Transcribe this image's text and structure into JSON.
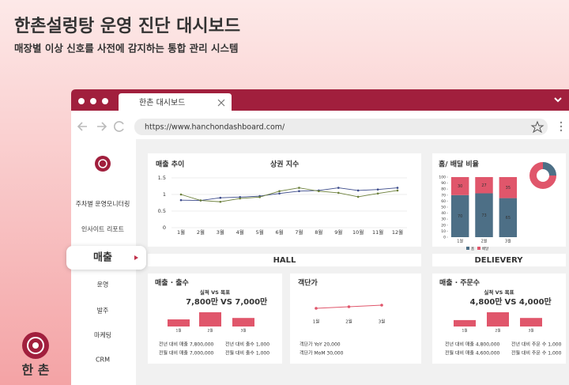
{
  "header": {
    "title": "한촌설렁탕 운영 진단 대시보드",
    "subtitle": "매장별 이상 신호를 사전에 감지하는 통합 관리 시스템"
  },
  "browser": {
    "tab": "한촌 대시보드",
    "url": "https://www.hanchondashboard.com/"
  },
  "sidebar": {
    "items": [
      "주차별 운영모니터링",
      "인사이트 리포트",
      "매출",
      "운영",
      "발주",
      "마케팅",
      "CRM"
    ],
    "active": 2
  },
  "sections": [
    "HALL",
    "DELIEVERY"
  ],
  "logo": "한 촌",
  "chart_data": [
    {
      "type": "line",
      "title": "매출 추이",
      "title2": "상권 지수",
      "categories": [
        "1월",
        "2월",
        "3월",
        "4월",
        "5월",
        "6월",
        "7월",
        "8월",
        "9월",
        "10월",
        "11월",
        "12월"
      ],
      "series": [
        {
          "color": "#3b4a8a",
          "values": [
            0.83,
            0.82,
            0.9,
            0.92,
            0.95,
            1.03,
            1.1,
            1.12,
            1.2,
            1.12,
            1.15,
            1.2
          ]
        },
        {
          "color": "#6b7f3a",
          "values": [
            1.0,
            0.82,
            0.78,
            0.88,
            0.92,
            1.1,
            1.2,
            1.1,
            1.05,
            0.93,
            1.03,
            1.12
          ]
        }
      ],
      "ylim": [
        0,
        1.5
      ],
      "yticks": [
        0,
        0.5,
        1,
        1.5
      ],
      "grid": true
    },
    {
      "type": "stacked-bar",
      "title": "홈/ 배달 비율",
      "categories": [
        "1월",
        "2월",
        "3월"
      ],
      "series": [
        {
          "name": "홈",
          "color": "#4d6f86",
          "values": [
            70,
            73,
            65
          ]
        },
        {
          "name": "배달",
          "color": "#e0566b",
          "values": [
            30,
            27,
            35
          ]
        }
      ],
      "ylim": [
        0,
        100
      ],
      "yticks": [
        0,
        10,
        20,
        30,
        40,
        50,
        60,
        70,
        80,
        90,
        100
      ]
    },
    {
      "type": "pie",
      "values": [
        25,
        75
      ],
      "colors": [
        "#4d6f86",
        "#e0566b"
      ]
    },
    {
      "type": "bar",
      "title": "매출 · 출수",
      "subtitle": "실적 VS 목표",
      "actual": "7,800만",
      "target": "VS 7,000만",
      "categories": [
        "1월",
        "2월",
        "3월"
      ],
      "values": [
        50,
        100,
        60
      ],
      "ylim": [
        0,
        100
      ],
      "color": "#e0566b",
      "notes": [
        [
          "전년 대비 매출 7,800,000",
          "전월 대비 매출 7,000,000"
        ],
        [
          "전년 대비 출수 1,000",
          "전월 대비 출수 1,000"
        ]
      ]
    },
    {
      "type": "line",
      "title": "객단가",
      "categories": [
        "1월",
        "2월",
        "3월"
      ],
      "values": [
        20,
        21,
        22
      ],
      "ylim": [
        0,
        40
      ],
      "color": "#e0566b",
      "notes": [
        [
          "객단가 YoY 20,000",
          "객단가 MoM 30,000"
        ]
      ]
    },
    {
      "type": "bar",
      "title": "매출 · 주문수",
      "subtitle": "실적 VS 목표",
      "actual": "4,800만",
      "target": "VS 4,000만",
      "categories": [
        "1월",
        "2월",
        "3월"
      ],
      "values": [
        45,
        100,
        60
      ],
      "ylim": [
        0,
        100
      ],
      "color": "#e0566b",
      "notes": [
        [
          "전년 대비 매출 4,800,000",
          "전월 대비 매출 4,600,000"
        ],
        [
          "전년 대비 주문 수 1,000",
          "전월 대비 주문 수 1,000"
        ]
      ]
    }
  ]
}
